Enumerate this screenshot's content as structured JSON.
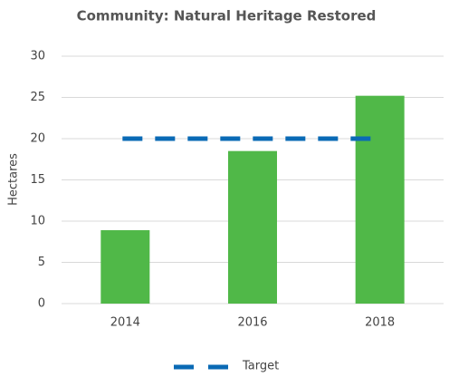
{
  "chart_data": {
    "type": "bar",
    "title": "Community: Natural Heritage Restored",
    "y_label": "Hectares",
    "categories": [
      "2014",
      "2016",
      "2018"
    ],
    "values": [
      8.9,
      18.5,
      25.2
    ],
    "color": "#50b848",
    "target": {
      "name": "Target",
      "value": 20,
      "color": "#0a6ab5"
    },
    "ylim": [
      0,
      30
    ],
    "yticks": [
      0,
      5,
      10,
      15,
      20,
      25,
      30
    ],
    "grid": true,
    "legend": "bottom"
  }
}
